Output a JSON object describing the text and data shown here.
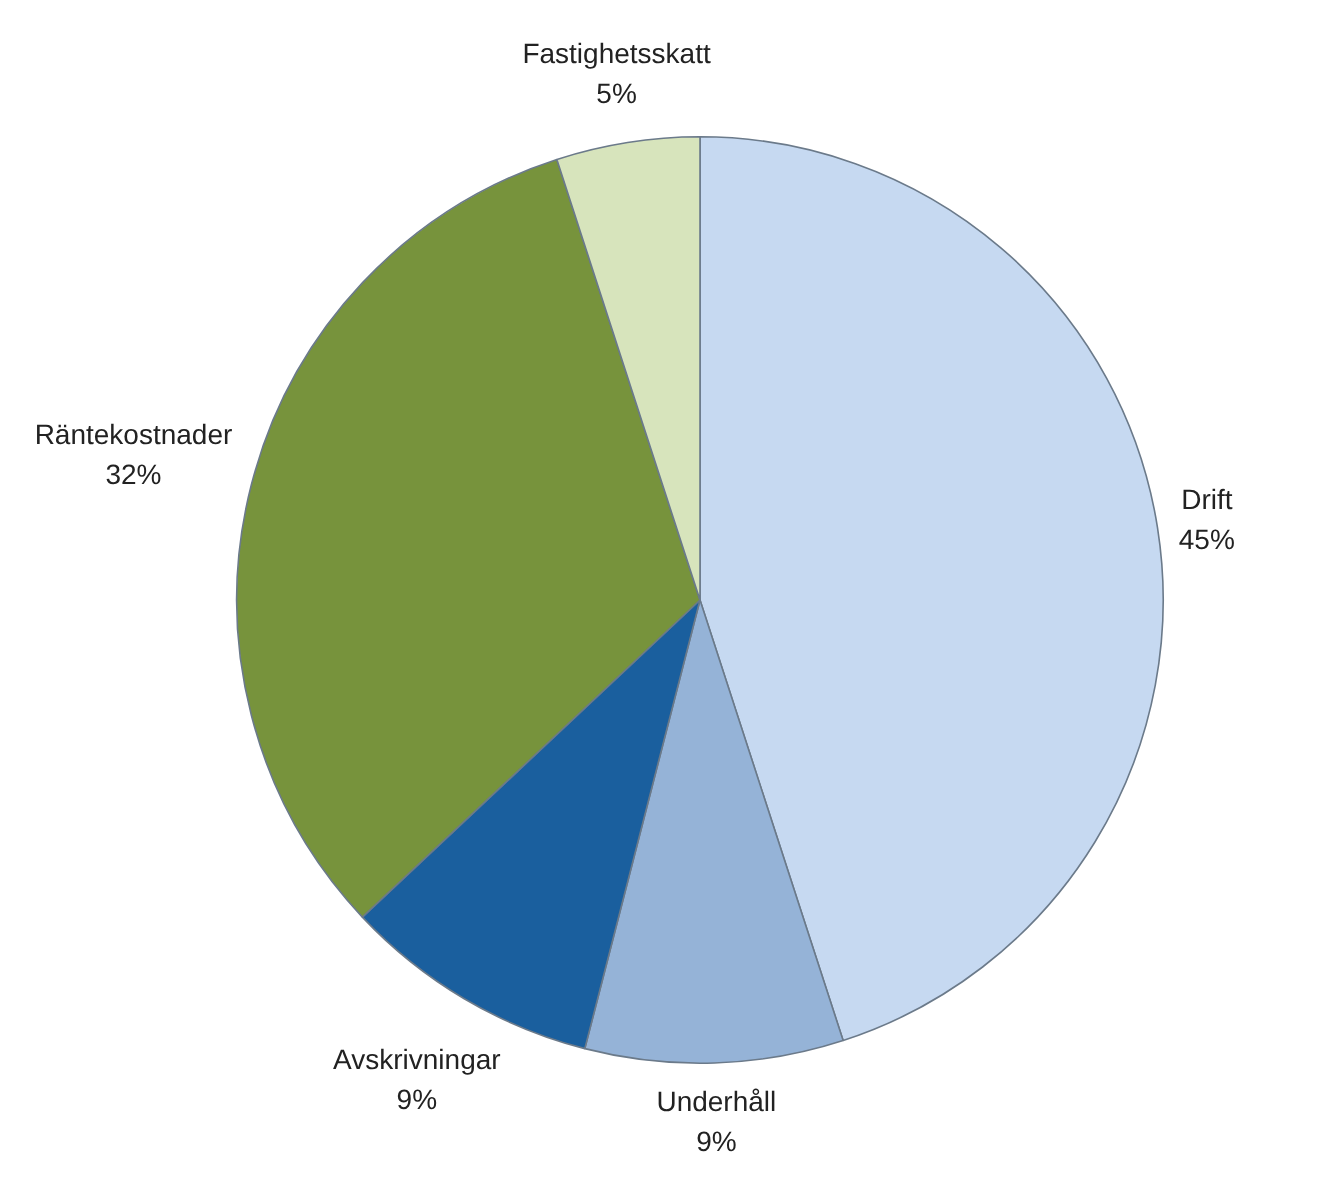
{
  "chart_data": {
    "type": "pie",
    "categories": [
      "Drift",
      "Underhåll",
      "Avskrivningar",
      "Räntekostnader",
      "Fastighetsskatt"
    ],
    "values": [
      45,
      9,
      9,
      32,
      5
    ],
    "colors": [
      "#c6d9f1",
      "#95b3d7",
      "#1a5f9e",
      "#77933c",
      "#d7e4bc"
    ],
    "value_labels": [
      "45%",
      "9%",
      "9%",
      "32%",
      "5%"
    ],
    "legend": false
  }
}
